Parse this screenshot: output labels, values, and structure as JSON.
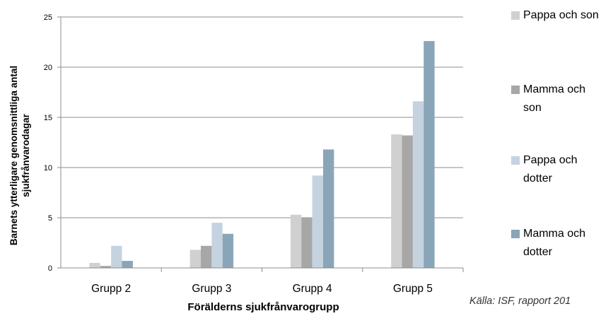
{
  "chart_data": {
    "type": "bar",
    "categories": [
      "Grupp 2",
      "Grupp 3",
      "Grupp 4",
      "Grupp 5"
    ],
    "series": [
      {
        "name": "Pappa och son",
        "color": "#d0d0d0",
        "values": [
          0.5,
          1.8,
          5.3,
          13.3
        ]
      },
      {
        "name": "Mamma och son",
        "color": "#a7a7a7",
        "values": [
          0.2,
          2.2,
          5.0,
          13.2
        ]
      },
      {
        "name": "Pappa och dotter",
        "color": "#c4d3df",
        "values": [
          2.2,
          4.5,
          9.2,
          16.6
        ]
      },
      {
        "name": "Mamma och dotter",
        "color": "#8aa5b8",
        "values": [
          0.7,
          3.4,
          11.8,
          22.6
        ]
      }
    ],
    "ylim": [
      0,
      25
    ],
    "yticks": [
      0,
      5,
      10,
      15,
      20,
      25
    ],
    "ylabel": "Barnets ytterligare genomsnittliga antal sjukfrånvarodagar",
    "xlabel": "Förälderns sjukfrånvarogrupp",
    "grid": true,
    "legend_position": "right"
  },
  "source": "Källa: ISF, rapport 201"
}
